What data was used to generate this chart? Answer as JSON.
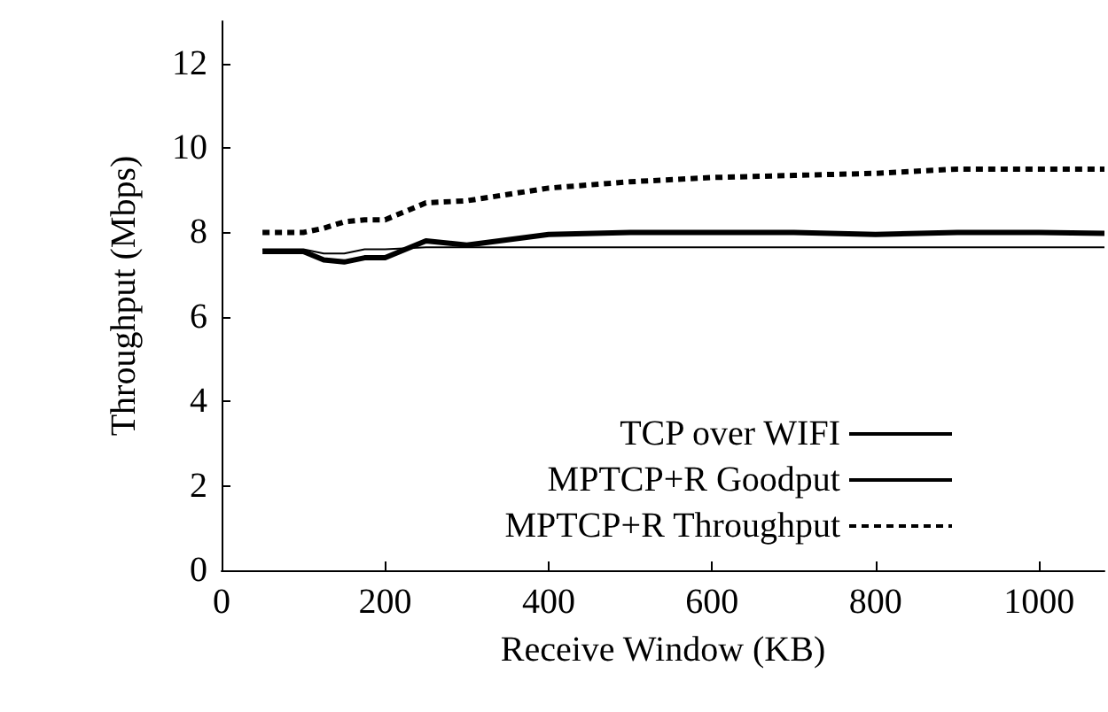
{
  "chart_data": {
    "type": "line",
    "xlabel": "Receive Window (KB)",
    "ylabel": "Throughput (Mbps)",
    "x": [
      50,
      100,
      125,
      150,
      175,
      200,
      250,
      300,
      400,
      500,
      600,
      700,
      800,
      900,
      1000,
      1080
    ],
    "series": [
      {
        "name": "TCP over WIFI",
        "color": "#000000",
        "line_style": "solid",
        "values": [
          7.6,
          7.6,
          7.5,
          7.5,
          7.6,
          7.6,
          7.65,
          7.65,
          7.65,
          7.65,
          7.65,
          7.65,
          7.65,
          7.65,
          7.65,
          7.65
        ]
      },
      {
        "name": "MPTCP+R Goodput",
        "color": "#000000",
        "line_style": "solid",
        "values": [
          7.55,
          7.55,
          7.35,
          7.3,
          7.4,
          7.4,
          7.8,
          7.7,
          7.95,
          8.0,
          8.0,
          8.0,
          7.95,
          8.0,
          8.0,
          7.98
        ]
      },
      {
        "name": "MPTCP+R Throughput",
        "color": "#000000",
        "line_style": "dashed",
        "values": [
          8.0,
          8.0,
          8.1,
          8.25,
          8.3,
          8.3,
          8.7,
          8.75,
          9.05,
          9.2,
          9.3,
          9.35,
          9.4,
          9.5,
          9.5,
          9.5
        ]
      }
    ],
    "xlim": [
      0,
      1080
    ],
    "xticks": [
      0,
      200,
      400,
      600,
      800,
      1000
    ],
    "ylim": [
      0,
      13
    ],
    "yticks": [
      0,
      2,
      4,
      6,
      8,
      10,
      12
    ],
    "grid": false,
    "legend": "bottom right",
    "marker": "none"
  }
}
